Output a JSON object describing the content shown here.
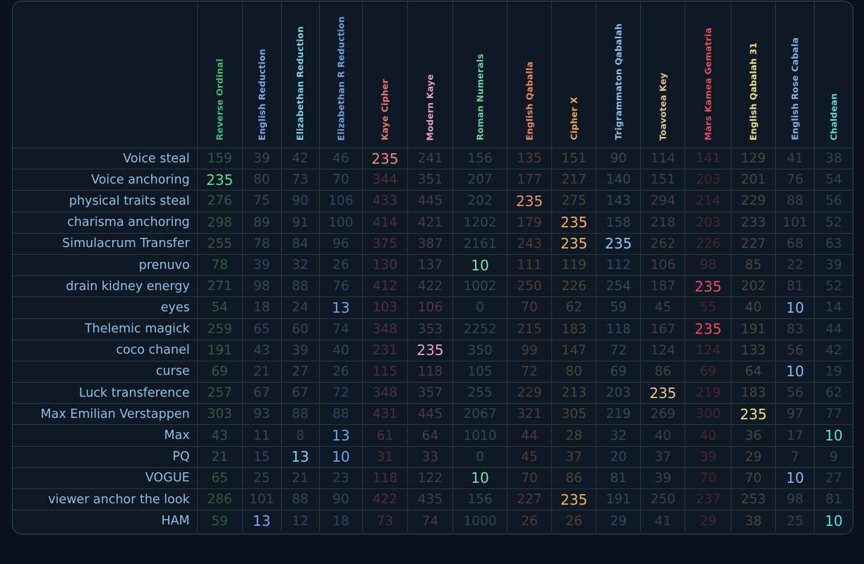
{
  "columns": [
    {
      "label": "Reverse Ordinal",
      "dim": "#2f5a3c",
      "hi": "#5fe08a"
    },
    {
      "label": "English Reduction",
      "dim": "#34445a",
      "hi": "#7aa6f5"
    },
    {
      "label": "Elizabethan Reduction",
      "dim": "#34445a",
      "hi": "#7fd6e6"
    },
    {
      "label": "Elizabethan R Reduction",
      "dim": "#2f4458",
      "hi": "#6aa6f0"
    },
    {
      "label": "Kaye Cipher",
      "dim": "#4e2f35",
      "hi": "#f08a80"
    },
    {
      "label": "Modern Kaye",
      "dim": "#4a3a45",
      "hi": "#f0a0bd"
    },
    {
      "label": "Roman Numerals",
      "dim": "#2e4a44",
      "hi": "#7ee0a8"
    },
    {
      "label": "English Qaballa",
      "dim": "#523a30",
      "hi": "#f0926a"
    },
    {
      "label": "Cipher X",
      "dim": "#4f4330",
      "hi": "#f4b25c"
    },
    {
      "label": "Trigrammaton Qabalah",
      "dim": "#33485a",
      "hi": "#8ac8f0"
    },
    {
      "label": "Toavotea Key",
      "dim": "#423e3c",
      "hi": "#f0c48a"
    },
    {
      "label": "Mars Kamea Gematria",
      "dim": "#45252a",
      "hi": "#f04a58"
    },
    {
      "label": "English Qabalah 31",
      "dim": "#4c4635",
      "hi": "#f0e08a"
    },
    {
      "label": "English Rose Cabala",
      "dim": "#354050",
      "hi": "#8ab4f0"
    },
    {
      "label": "Chaldean",
      "dim": "#2a4648",
      "hi": "#5ee0d8"
    }
  ],
  "header_colors": [
    "#3fbf74",
    "#7ea6e8",
    "#7cd3de",
    "#6f9ddf",
    "#e87770",
    "#e2a0bd",
    "#6ed09a",
    "#e78a6a",
    "#eda757",
    "#86c2e8",
    "#e8c08f",
    "#df4f58",
    "#ece08a",
    "#86aee4",
    "#5cd8cf"
  ],
  "rows": [
    {
      "label": "Voice steal",
      "values": [
        "159",
        "39",
        "42",
        "46",
        "235",
        "241",
        "156",
        "135",
        "151",
        "90",
        "114",
        "141",
        "129",
        "41",
        "38"
      ]
    },
    {
      "label": "Voice anchoring",
      "values": [
        "235",
        "80",
        "73",
        "70",
        "344",
        "351",
        "207",
        "177",
        "217",
        "140",
        "151",
        "203",
        "201",
        "76",
        "54"
      ]
    },
    {
      "label": "physical traits steal",
      "values": [
        "276",
        "75",
        "90",
        "106",
        "433",
        "445",
        "202",
        "235",
        "275",
        "143",
        "294",
        "214",
        "229",
        "88",
        "56"
      ]
    },
    {
      "label": "charisma anchoring",
      "values": [
        "298",
        "89",
        "91",
        "100",
        "414",
        "421",
        "1202",
        "179",
        "235",
        "158",
        "218",
        "203",
        "233",
        "101",
        "52"
      ]
    },
    {
      "label": "Simulacrum Transfer",
      "values": [
        "255",
        "78",
        "84",
        "96",
        "375",
        "387",
        "2161",
        "243",
        "235",
        "235",
        "262",
        "226",
        "227",
        "68",
        "63"
      ]
    },
    {
      "label": "prenuvo",
      "values": [
        "78",
        "39",
        "32",
        "26",
        "130",
        "137",
        "10",
        "111",
        "119",
        "112",
        "106",
        "98",
        "85",
        "22",
        "39"
      ]
    },
    {
      "label": "drain kidney energy",
      "values": [
        "271",
        "98",
        "88",
        "76",
        "412",
        "422",
        "1002",
        "250",
        "226",
        "254",
        "187",
        "235",
        "202",
        "81",
        "52"
      ]
    },
    {
      "label": "eyes",
      "values": [
        "54",
        "18",
        "24",
        "13",
        "103",
        "106",
        "0",
        "70",
        "62",
        "59",
        "45",
        "55",
        "40",
        "10",
        "14"
      ]
    },
    {
      "label": "Thelemic magick",
      "values": [
        "259",
        "65",
        "60",
        "74",
        "348",
        "353",
        "2252",
        "215",
        "183",
        "118",
        "167",
        "235",
        "191",
        "83",
        "44"
      ]
    },
    {
      "label": "coco chanel",
      "values": [
        "191",
        "43",
        "39",
        "40",
        "231",
        "235",
        "350",
        "99",
        "147",
        "72",
        "124",
        "124",
        "133",
        "56",
        "42"
      ]
    },
    {
      "label": "curse",
      "values": [
        "69",
        "21",
        "27",
        "26",
        "115",
        "118",
        "105",
        "72",
        "80",
        "69",
        "86",
        "69",
        "64",
        "10",
        "19"
      ]
    },
    {
      "label": "Luck transference",
      "values": [
        "257",
        "67",
        "67",
        "72",
        "348",
        "357",
        "255",
        "229",
        "213",
        "203",
        "235",
        "219",
        "183",
        "56",
        "62"
      ]
    },
    {
      "label": "Max Emilian Verstappen",
      "values": [
        "303",
        "93",
        "88",
        "88",
        "431",
        "445",
        "2067",
        "321",
        "305",
        "219",
        "269",
        "300",
        "235",
        "97",
        "77"
      ]
    },
    {
      "label": "Max",
      "values": [
        "43",
        "11",
        "8",
        "13",
        "61",
        "64",
        "1010",
        "44",
        "28",
        "32",
        "40",
        "40",
        "36",
        "17",
        "10"
      ]
    },
    {
      "label": "PQ",
      "values": [
        "21",
        "15",
        "13",
        "10",
        "31",
        "33",
        "0",
        "45",
        "37",
        "20",
        "37",
        "39",
        "29",
        "7",
        "9"
      ]
    },
    {
      "label": "VOGUE",
      "values": [
        "65",
        "25",
        "21",
        "23",
        "118",
        "122",
        "10",
        "70",
        "86",
        "81",
        "39",
        "70",
        "70",
        "10",
        "27"
      ]
    },
    {
      "label": "viewer anchor the look",
      "values": [
        "286",
        "101",
        "88",
        "90",
        "422",
        "435",
        "156",
        "227",
        "235",
        "191",
        "250",
        "237",
        "253",
        "98",
        "81"
      ]
    },
    {
      "label": "HAM",
      "values": [
        "59",
        "13",
        "12",
        "18",
        "73",
        "74",
        "1000",
        "26",
        "26",
        "29",
        "41",
        "29",
        "38",
        "25",
        "10"
      ]
    }
  ],
  "highlight_values": [
    "235",
    "13",
    "10"
  ]
}
